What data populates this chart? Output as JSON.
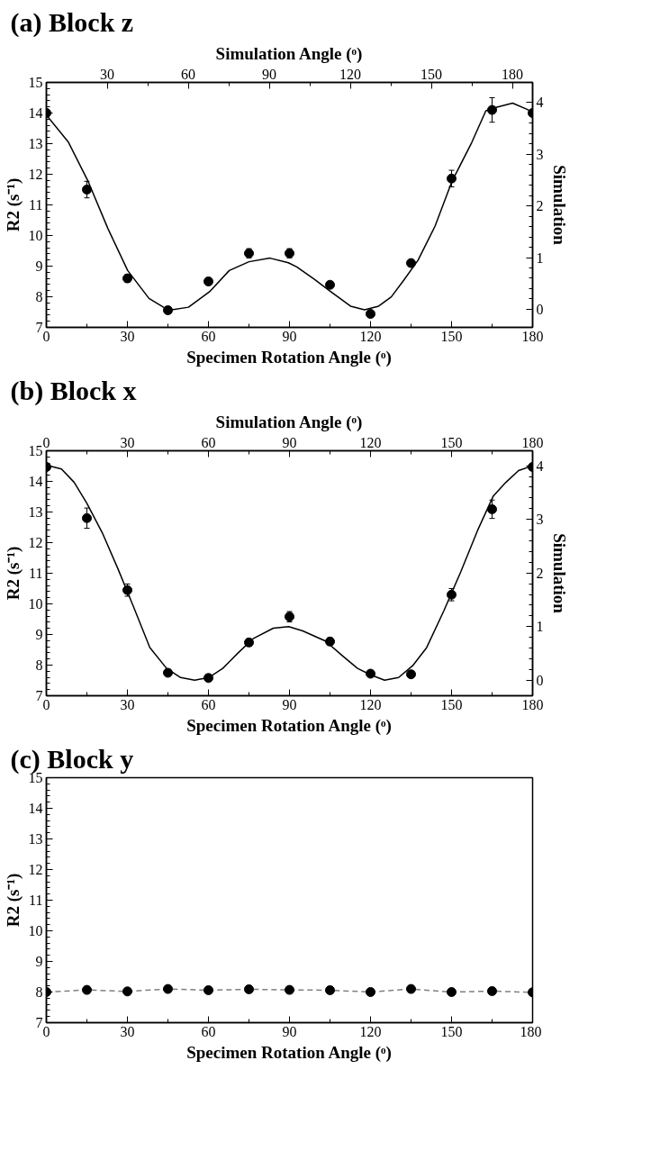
{
  "chart_data": [
    {
      "type": "scatter",
      "title": "(a) Block z",
      "xlabel": "Specimen Rotation Angle (ᵒ)",
      "ylabel": "R2 (s⁻¹)",
      "x2label": "Simulation Angle (ᵒ)",
      "y2label": "Simulation",
      "marker": "circle",
      "grid": false,
      "xlim": [
        0,
        180
      ],
      "xticks": [
        0,
        30,
        60,
        90,
        120,
        150,
        180
      ],
      "ylim": [
        7,
        15
      ],
      "yticks": [
        7,
        8,
        9,
        10,
        11,
        12,
        13,
        14,
        15
      ],
      "x2lim": [
        7.5,
        187.5
      ],
      "x2ticks": [
        30,
        60,
        90,
        120,
        150,
        180
      ],
      "y2lim": [
        -0.35,
        4.39
      ],
      "y2ticks": [
        0,
        1,
        2,
        3,
        4
      ],
      "x": [
        0,
        15,
        30,
        45,
        60,
        75,
        90,
        105,
        120,
        135,
        150,
        165,
        180
      ],
      "series": [
        {
          "type": "scatter",
          "color": "#000000",
          "values": [
            14.0,
            11.5,
            8.6,
            7.56,
            8.5,
            9.42,
            9.42,
            8.39,
            7.44,
            9.1,
            11.86,
            14.1,
            14.0
          ],
          "errors": [
            null,
            0.27,
            0.12,
            0.08,
            0.12,
            0.15,
            0.15,
            0.1,
            0.08,
            0.1,
            0.27,
            0.4,
            null
          ]
        },
        {
          "type": "line",
          "axis": "y2",
          "marker": "none",
          "line_style": "solid",
          "color": "#000000",
          "x": [
            0,
            8.2,
            15.5,
            22.8,
            30.1,
            38,
            45.3,
            52.6,
            60.4,
            67.7,
            75,
            82.8,
            89.6,
            92.7,
            99,
            105.3,
            112.6,
            117.8,
            123,
            127.7,
            132.4,
            137.6,
            143.9,
            150.1,
            157.5,
            162.7,
            166.8,
            172.6,
            178.3,
            180
          ],
          "values": [
            3.76,
            3.23,
            2.47,
            1.56,
            0.75,
            0.21,
            -0.02,
            0.04,
            0.34,
            0.75,
            0.92,
            0.99,
            0.9,
            0.82,
            0.59,
            0.34,
            0.06,
            -0.01,
            0.06,
            0.24,
            0.57,
            0.95,
            1.61,
            2.47,
            3.23,
            3.84,
            3.91,
            3.99,
            3.86,
            3.8
          ]
        }
      ]
    },
    {
      "type": "scatter",
      "title": "(b) Block x",
      "xlabel": "Specimen Rotation Angle (ᵒ)",
      "ylabel": "R2 (s⁻¹)",
      "x2label": "Simulation Angle (ᵒ)",
      "y2label": "Simulation",
      "marker": "circle",
      "grid": false,
      "xlim": [
        0,
        180
      ],
      "xticks": [
        0,
        30,
        60,
        90,
        120,
        150,
        180
      ],
      "ylim": [
        7,
        15
      ],
      "yticks": [
        7,
        8,
        9,
        10,
        11,
        12,
        13,
        14,
        15
      ],
      "x2lim": [
        0,
        180
      ],
      "x2ticks": [
        0,
        30,
        60,
        90,
        120,
        150,
        180
      ],
      "y2lim": [
        -0.29,
        4.28
      ],
      "y2ticks": [
        0,
        1,
        2,
        3,
        4
      ],
      "x": [
        0,
        15,
        30,
        45,
        60,
        75,
        90,
        105,
        120,
        135,
        150,
        165,
        180
      ],
      "series": [
        {
          "type": "scatter",
          "color": "#000000",
          "values": [
            14.47,
            12.8,
            10.45,
            7.75,
            7.58,
            8.74,
            9.58,
            8.77,
            7.72,
            7.7,
            10.3,
            13.09,
            14.47
          ],
          "errors": [
            null,
            0.33,
            0.2,
            0.1,
            0.05,
            0.12,
            0.17,
            0.12,
            0.06,
            0.1,
            0.2,
            0.3,
            null
          ]
        },
        {
          "type": "line",
          "axis": "y2",
          "marker": "none",
          "line_style": "solid",
          "color": "#000000",
          "x": [
            0,
            5.6,
            10.3,
            15,
            20.7,
            26.4,
            32.1,
            38.3,
            44.5,
            49.7,
            54.9,
            60.1,
            65.3,
            71,
            76.7,
            84,
            89.7,
            94.9,
            103.3,
            109.5,
            115.2,
            120,
            125.2,
            130.4,
            135.6,
            140.8,
            147.1,
            153.4,
            159.6,
            165.4,
            170.1,
            174.8,
            180
          ],
          "values": [
            4.01,
            3.94,
            3.69,
            3.3,
            2.75,
            2.09,
            1.39,
            0.61,
            0.22,
            0.05,
            0.0,
            0.05,
            0.22,
            0.51,
            0.78,
            0.97,
            1.0,
            0.92,
            0.73,
            0.46,
            0.22,
            0.1,
            0.0,
            0.05,
            0.27,
            0.61,
            1.29,
            2.02,
            2.79,
            3.43,
            3.69,
            3.91,
            4.0
          ]
        }
      ]
    },
    {
      "type": "scatter",
      "title": "(c) Block y",
      "xlabel": "Specimen Rotation Angle (ᵒ)",
      "ylabel": "R2 (s⁻¹)",
      "marker": "circle",
      "grid": false,
      "xlim": [
        0,
        180
      ],
      "xticks": [
        0,
        30,
        60,
        90,
        120,
        150,
        180
      ],
      "ylim": [
        7,
        15
      ],
      "yticks": [
        7,
        8,
        9,
        10,
        11,
        12,
        13,
        14,
        15
      ],
      "x": [
        0,
        15,
        30,
        45,
        60,
        75,
        90,
        105,
        120,
        135,
        150,
        165,
        180
      ],
      "series": [
        {
          "type": "line",
          "marker": "none",
          "line_style": "dashed",
          "color": "#808080",
          "values": [
            8.0,
            8.07,
            8.02,
            8.1,
            8.06,
            8.09,
            8.07,
            8.06,
            8.0,
            8.1,
            8.0,
            8.03,
            7.99
          ]
        },
        {
          "type": "scatter",
          "color": "#000000",
          "values": [
            8.0,
            8.07,
            8.02,
            8.1,
            8.06,
            8.09,
            8.07,
            8.06,
            8.0,
            8.1,
            8.0,
            8.03,
            7.99
          ],
          "errors": [
            0.1,
            0.1,
            0.1,
            0.1,
            0.1,
            0.1,
            0.1,
            0.1,
            0.1,
            0.1,
            0.1,
            0.1,
            null
          ]
        }
      ]
    }
  ]
}
